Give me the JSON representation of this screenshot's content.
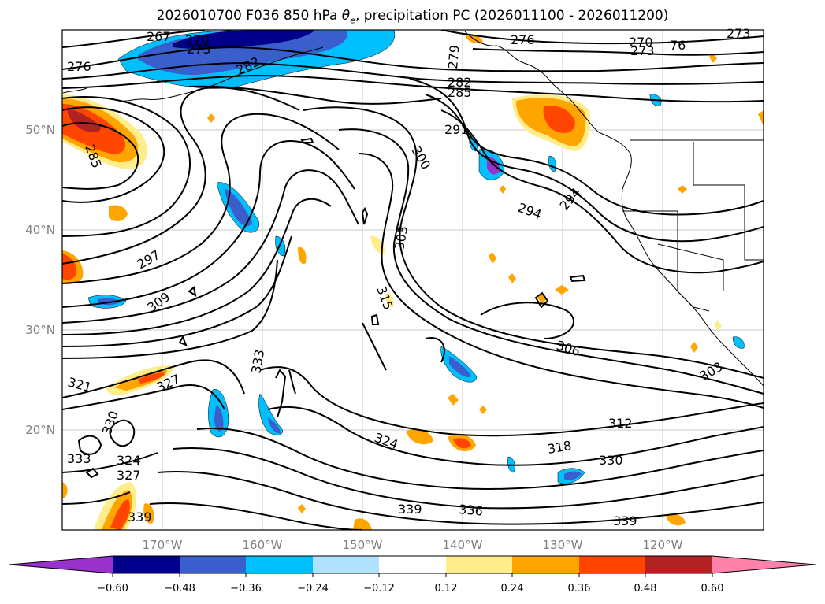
{
  "title": {
    "main": "2026010700 F036 850 hPa",
    "symbol": "θe",
    "rest": ", precipitation PC (2026011100 - 2026011200)"
  },
  "map": {
    "lat_labels": [
      "50°N",
      "40°N",
      "30°N",
      "20°N"
    ],
    "lon_labels": [
      "170°W",
      "160°W",
      "150°W",
      "140°W",
      "130°W",
      "120°W"
    ],
    "contour_labels": [
      {
        "text": "267"
      },
      {
        "text": "270"
      },
      {
        "text": "273"
      },
      {
        "text": "276"
      },
      {
        "text": "279"
      },
      {
        "text": "276"
      },
      {
        "text": "270"
      },
      {
        "text": "273"
      },
      {
        "text": "76"
      },
      {
        "text": "273"
      },
      {
        "text": "282"
      },
      {
        "text": "285"
      },
      {
        "text": "291"
      },
      {
        "text": "285"
      },
      {
        "text": "300"
      },
      {
        "text": "294"
      },
      {
        "text": "294"
      },
      {
        "text": "303"
      },
      {
        "text": "297"
      },
      {
        "text": "309"
      },
      {
        "text": "315"
      },
      {
        "text": "306"
      },
      {
        "text": "333"
      },
      {
        "text": "327"
      },
      {
        "text": "321"
      },
      {
        "text": "303"
      },
      {
        "text": "312"
      },
      {
        "text": "330"
      },
      {
        "text": "324"
      },
      {
        "text": "318"
      },
      {
        "text": "330"
      },
      {
        "text": "333"
      },
      {
        "text": "324"
      },
      {
        "text": "327"
      },
      {
        "text": "339"
      },
      {
        "text": "339"
      },
      {
        "text": "336"
      },
      {
        "text": "339"
      },
      {
        "text": "282"
      }
    ]
  },
  "colorbar": {
    "ticks": [
      "−0.60",
      "−0.48",
      "−0.36",
      "−0.24",
      "−0.12",
      "0.12",
      "0.24",
      "0.36",
      "0.48",
      "0.60"
    ],
    "colors": [
      "#9932CC",
      "#00008B",
      "#3A5FCD",
      "#00BFFF",
      "#B0E2FF",
      "#FFFFFF",
      "#FFEC8B",
      "#FFA500",
      "#FF4500",
      "#B22222",
      "#FF82AB"
    ]
  }
}
